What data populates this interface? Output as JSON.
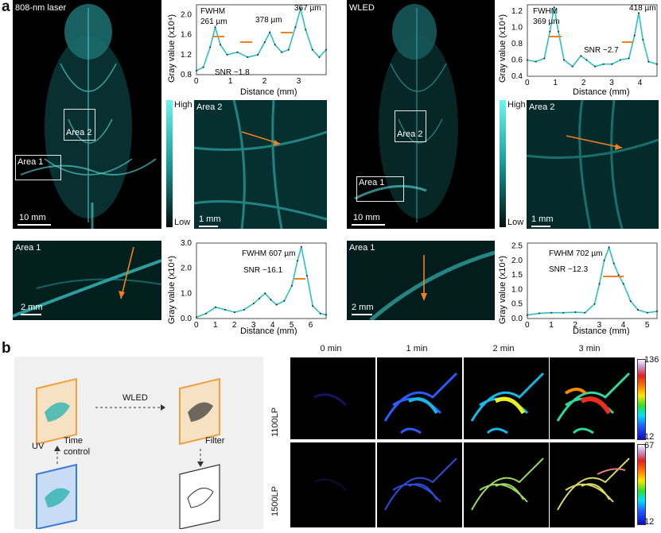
{
  "panel_a": {
    "letter": "a",
    "left": {
      "source_label": "808-nm laser",
      "area1_label": "Area 1",
      "area2_label": "Area 2",
      "scale_main": "10 mm",
      "scale_area2": "1 mm",
      "scale_area1": "2 mm",
      "colorbar_high": "High",
      "colorbar_low": "Low",
      "plot_top": {
        "fwhm_label": "FWHM",
        "peak_labels": [
          "261 µm",
          "378 µm",
          "367 µm"
        ],
        "snr": "SNR ~1.8",
        "ylabel": "Gray value (x10⁴)",
        "xlabel": "Distance (mm)",
        "yticks": [
          "0.8",
          "1.2",
          "1.6",
          "2.0"
        ],
        "xticks": [
          "0",
          "1",
          "2",
          "3"
        ]
      },
      "plot_bottom": {
        "fwhm_label": "FWHM 607 µm",
        "snr": "SNR ~16.1",
        "ylabel": "Gray value (x10⁴)",
        "xlabel": "Distance (mm)",
        "yticks": [
          "0.0",
          "1.0",
          "2.0",
          "3.0"
        ],
        "xticks": [
          "0",
          "1",
          "2",
          "3",
          "4",
          "5",
          "6"
        ]
      }
    },
    "right": {
      "source_label": "WLED",
      "area1_label": "Area 1",
      "area2_label": "Area 2",
      "scale_main": "10 mm",
      "scale_area2": "1 mm",
      "scale_area1": "2 mm",
      "colorbar_high": "High",
      "colorbar_low": "Low",
      "plot_top": {
        "fwhm_label": "FWHM",
        "peak_labels": [
          "369 µm",
          "418 µm"
        ],
        "snr": "SNR ~2.7",
        "ylabel": "Gray value (x10⁴)",
        "xlabel": "Distance (mm)",
        "yticks": [
          "0.4",
          "0.6",
          "0.8",
          "1.0",
          "1.2"
        ],
        "xticks": [
          "0",
          "1",
          "2",
          "3",
          "4"
        ]
      },
      "plot_bottom": {
        "fwhm_label": "FWHM 702 µm",
        "snr": "SNR ~12.3",
        "ylabel": "Gray value (x10⁴)",
        "xlabel": "Distance (mm)",
        "yticks": [
          "0.0",
          "0.5",
          "1.0",
          "1.5",
          "2.0",
          "2.5"
        ],
        "xticks": [
          "0",
          "1",
          "2",
          "3",
          "4",
          "5"
        ]
      }
    }
  },
  "panel_b": {
    "letter": "b",
    "scheme": {
      "wled": "WLED",
      "uv": "UV",
      "time": "Time",
      "control": "control",
      "filter": "Filter"
    },
    "times": [
      "0 min",
      "1 min",
      "2 min",
      "3 min"
    ],
    "rows": [
      {
        "label": "1100LP",
        "max": "136",
        "min": "12"
      },
      {
        "label": "1500LP",
        "max": "67",
        "min": "12"
      }
    ]
  },
  "chart_data": [
    {
      "type": "line",
      "title": "",
      "xlabel": "Distance (mm)",
      "ylabel": "Gray value (x10⁴)",
      "xlim": [
        0,
        3.8
      ],
      "ylim": [
        0.8,
        2.2
      ],
      "series": [
        {
          "x": [
            0,
            0.2,
            0.4,
            0.55,
            0.7,
            0.9,
            1.2,
            1.5,
            1.8,
            2.0,
            2.15,
            2.3,
            2.5,
            2.7,
            2.9,
            3.05,
            3.2,
            3.4,
            3.6,
            3.8
          ],
          "y": [
            0.88,
            0.95,
            1.35,
            1.75,
            1.4,
            1.2,
            1.25,
            1.15,
            1.2,
            1.45,
            1.65,
            1.4,
            1.25,
            1.3,
            1.75,
            2.12,
            1.7,
            1.3,
            1.15,
            1.3
          ]
        }
      ]
    },
    {
      "type": "line",
      "title": "",
      "xlabel": "Distance (mm)",
      "ylabel": "Gray value (x10⁴)",
      "xlim": [
        0,
        6.8
      ],
      "ylim": [
        0,
        3.0
      ],
      "series": [
        {
          "x": [
            0,
            0.5,
            1.0,
            1.5,
            2.0,
            2.5,
            3.0,
            3.3,
            3.6,
            3.9,
            4.2,
            4.6,
            5.0,
            5.3,
            5.5,
            5.8,
            6.1,
            6.5,
            6.8
          ],
          "y": [
            0.05,
            0.2,
            0.45,
            0.35,
            0.25,
            0.35,
            0.6,
            0.8,
            1.0,
            0.75,
            0.55,
            0.7,
            1.3,
            2.3,
            2.85,
            1.7,
            0.5,
            0.2,
            0.15
          ]
        }
      ]
    },
    {
      "type": "line",
      "title": "",
      "xlabel": "Distance (mm)",
      "ylabel": "Gray value (x10⁴)",
      "xlim": [
        0,
        4.6
      ],
      "ylim": [
        0.4,
        1.28
      ],
      "series": [
        {
          "x": [
            0,
            0.3,
            0.6,
            0.8,
            0.95,
            1.1,
            1.3,
            1.6,
            1.9,
            2.1,
            2.4,
            2.7,
            3.0,
            3.3,
            3.6,
            3.8,
            3.95,
            4.1,
            4.3,
            4.6
          ],
          "y": [
            0.6,
            0.58,
            0.62,
            0.95,
            1.25,
            0.95,
            0.6,
            0.52,
            0.65,
            0.6,
            0.52,
            0.55,
            0.55,
            0.6,
            0.62,
            0.9,
            1.18,
            0.85,
            0.58,
            0.55
          ]
        }
      ]
    },
    {
      "type": "line",
      "title": "",
      "xlabel": "Distance (mm)",
      "ylabel": "Gray value (x10⁴)",
      "xlim": [
        0,
        5.4
      ],
      "ylim": [
        0,
        2.6
      ],
      "series": [
        {
          "x": [
            0,
            0.5,
            1.0,
            1.5,
            2.0,
            2.4,
            2.8,
            3.0,
            3.2,
            3.4,
            3.6,
            3.8,
            4.0,
            4.3,
            4.6,
            5.0,
            5.4
          ],
          "y": [
            0.12,
            0.18,
            0.2,
            0.2,
            0.22,
            0.2,
            0.5,
            1.2,
            2.0,
            2.45,
            1.9,
            1.5,
            1.2,
            0.6,
            0.3,
            0.2,
            0.25
          ]
        }
      ]
    }
  ]
}
